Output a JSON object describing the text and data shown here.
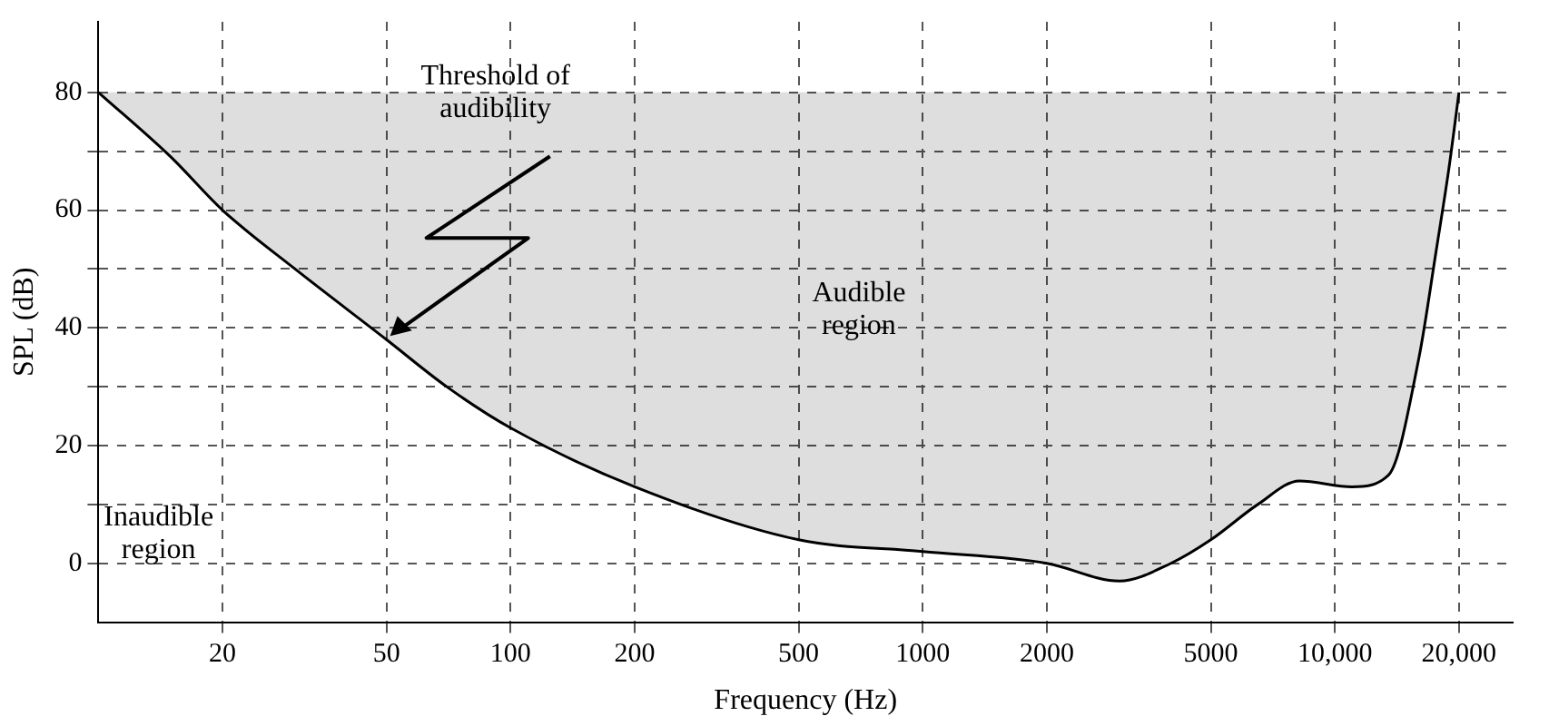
{
  "chart_data": {
    "type": "line",
    "xlabel": "Frequency (Hz)",
    "ylabel": "SPL (dB)",
    "x": [
      10,
      15,
      20,
      30,
      50,
      70,
      100,
      200,
      500,
      1000,
      2000,
      3000,
      4000,
      5000,
      6500,
      8200,
      11000,
      13500,
      16000,
      17600,
      18900,
      20000
    ],
    "series": [
      {
        "color": "#000000",
        "values": [
          80,
          69,
          60,
          50,
          38,
          30,
          23,
          13,
          4,
          2,
          0,
          -3,
          0,
          4,
          10,
          14,
          13,
          15,
          35,
          53,
          67,
          80
        ],
        "lower": [
          80,
          69,
          60,
          50,
          38,
          30,
          23,
          13,
          4,
          2,
          0,
          -3,
          0,
          4,
          10,
          14,
          13,
          15,
          35,
          53,
          67,
          80
        ],
        "upper": [
          80,
          80,
          80,
          80,
          80,
          80,
          80,
          80,
          80,
          80,
          80,
          80,
          80,
          80,
          80,
          80,
          80,
          80,
          80,
          80,
          80,
          80
        ]
      }
    ],
    "xlim": [
      10,
      27000
    ],
    "xticks": [
      20,
      50,
      100,
      200,
      500,
      1000,
      2000,
      5000,
      {
        "value": 10000,
        "label": "10,000"
      },
      {
        "value": 20000,
        "label": "20,000"
      }
    ],
    "ylim": [
      -10,
      92
    ],
    "yticks": [
      0,
      {
        "value": 10,
        "label": null
      },
      20,
      {
        "value": 30,
        "label": null
      },
      40,
      {
        "value": 50,
        "label": null
      },
      60,
      {
        "value": 70,
        "label": null
      },
      80
    ],
    "log": "x",
    "grid": true,
    "legend": false,
    "marker": "none",
    "line_style": "solid",
    "annotations": [
      {
        "text": "Threshold of audibility",
        "x": 50,
        "y": 38
      },
      "Audible region",
      "Inaudible region"
    ]
  }
}
